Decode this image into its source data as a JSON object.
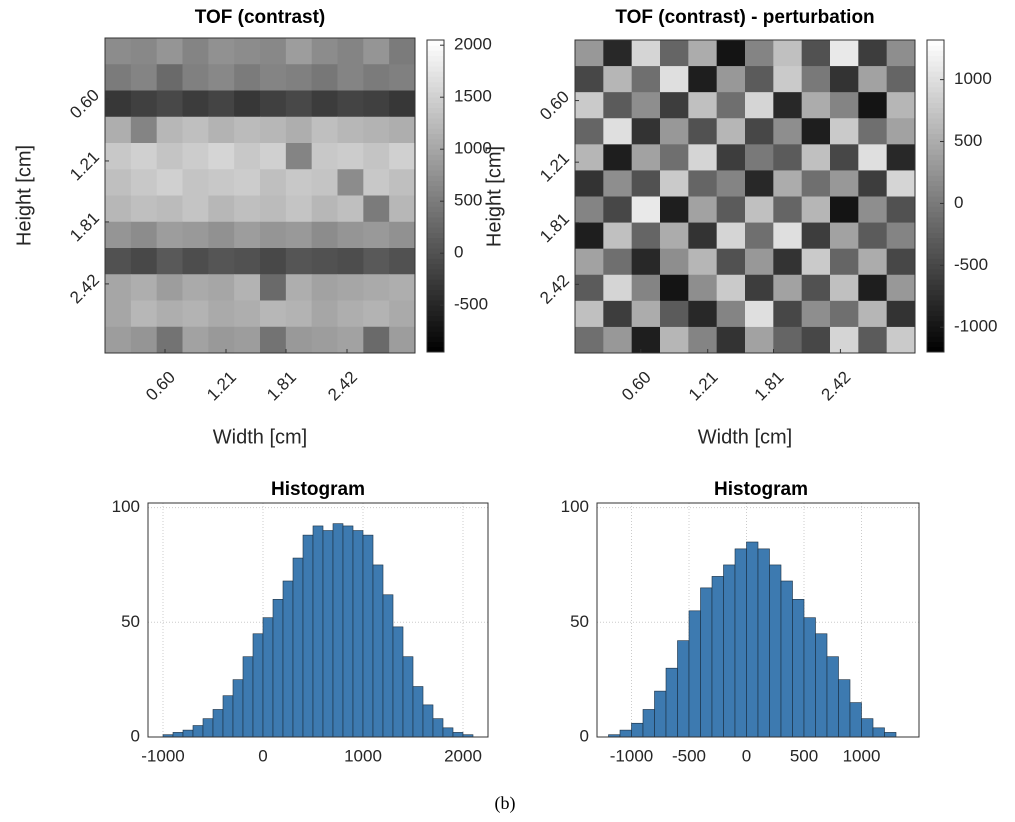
{
  "chart_data": [
    {
      "type": "heatmap",
      "title": "TOF (contrast)",
      "xlabel": "Width [cm]",
      "ylabel": "Height [cm]",
      "xlim": [
        0,
        3.1
      ],
      "ylim": [
        0,
        3.1
      ],
      "ydir": "reverse",
      "xticks": [
        {
          "value": 0.6,
          "label": "0.60"
        },
        {
          "value": 1.21,
          "label": "1.21"
        },
        {
          "value": 1.81,
          "label": "1.81"
        },
        {
          "value": 2.42,
          "label": "2.42"
        }
      ],
      "yticks": [
        {
          "value": 0.6,
          "label": "0.60"
        },
        {
          "value": 1.21,
          "label": "1.21"
        },
        {
          "value": 1.81,
          "label": "1.81"
        },
        {
          "value": 2.42,
          "label": "2.42"
        }
      ],
      "clim": [
        -950,
        2050
      ],
      "cticks": [
        -500,
        0,
        500,
        1000,
        1500,
        2000
      ],
      "colormap": "gray",
      "z": [
        [
          700,
          650,
          800,
          600,
          750,
          700,
          650,
          900,
          700,
          600,
          800,
          500
        ],
        [
          500,
          600,
          300,
          550,
          650,
          500,
          600,
          550,
          450,
          600,
          500,
          550
        ],
        [
          -300,
          -200,
          -100,
          -250,
          -150,
          -300,
          -200,
          -100,
          -250,
          -150,
          -200,
          -300
        ],
        [
          1100,
          600,
          1200,
          1300,
          1150,
          1250,
          1200,
          1100,
          1300,
          1200,
          1150,
          1100
        ],
        [
          1400,
          1500,
          1350,
          1450,
          1550,
          1400,
          1500,
          600,
          1400,
          1450,
          1350,
          1500
        ],
        [
          1300,
          1400,
          1500,
          1350,
          1400,
          1450,
          1300,
          1400,
          1350,
          700,
          1400,
          1300
        ],
        [
          1200,
          1300,
          1250,
          1350,
          1200,
          1300,
          1250,
          1350,
          1200,
          1300,
          500,
          1200
        ],
        [
          800,
          700,
          900,
          850,
          750,
          900,
          800,
          850,
          700,
          800,
          850,
          750
        ],
        [
          0,
          -100,
          100,
          -50,
          50,
          0,
          -100,
          50,
          0,
          -50,
          100,
          0
        ],
        [
          1000,
          1100,
          900,
          1050,
          1000,
          1150,
          300,
          1100,
          950,
          1000,
          1050,
          1100
        ],
        [
          1000,
          1200,
          1100,
          1150,
          1050,
          1100,
          1200,
          1150,
          1000,
          1100,
          1150,
          1050
        ],
        [
          900,
          800,
          400,
          950,
          850,
          900,
          400,
          850,
          900,
          950,
          300,
          900
        ]
      ]
    },
    {
      "type": "heatmap",
      "title": "TOF (contrast) - perturbation",
      "xlabel": "Width [cm]",
      "ylabel": "Height [cm]",
      "xlim": [
        0,
        3.1
      ],
      "ylim": [
        0,
        3.1
      ],
      "ydir": "reverse",
      "xticks": [
        {
          "value": 0.6,
          "label": "0.60"
        },
        {
          "value": 1.21,
          "label": "1.21"
        },
        {
          "value": 1.81,
          "label": "1.81"
        },
        {
          "value": 2.42,
          "label": "2.42"
        }
      ],
      "yticks": [
        {
          "value": 0.6,
          "label": "0.60"
        },
        {
          "value": 1.21,
          "label": "1.21"
        },
        {
          "value": 1.81,
          "label": "1.81"
        },
        {
          "value": 2.42,
          "label": "2.42"
        }
      ],
      "clim": [
        -1200,
        1320
      ],
      "cticks": [
        -1000,
        -500,
        0,
        500,
        1000
      ],
      "colormap": "gray",
      "z": [
        [
          300,
          -800,
          900,
          -200,
          500,
          -1000,
          100,
          700,
          -400,
          1100,
          -600,
          200
        ],
        [
          -500,
          600,
          -100,
          1000,
          -900,
          300,
          -300,
          800,
          0,
          -700,
          400,
          -200
        ],
        [
          800,
          -300,
          200,
          -600,
          700,
          -100,
          900,
          -800,
          500,
          100,
          -1000,
          600
        ],
        [
          -200,
          1000,
          -700,
          300,
          -400,
          600,
          -500,
          200,
          -900,
          800,
          -100,
          400
        ],
        [
          600,
          -900,
          400,
          -100,
          900,
          -600,
          0,
          -300,
          700,
          -500,
          1000,
          -800
        ],
        [
          -700,
          200,
          -400,
          800,
          -200,
          100,
          -800,
          500,
          -100,
          300,
          -600,
          900
        ],
        [
          100,
          -500,
          1100,
          -900,
          400,
          -300,
          700,
          -200,
          600,
          -1000,
          200,
          -400
        ],
        [
          -900,
          700,
          -200,
          500,
          -700,
          900,
          -100,
          1000,
          -600,
          400,
          -300,
          100
        ],
        [
          400,
          -100,
          -800,
          200,
          600,
          -400,
          300,
          -700,
          800,
          -200,
          500,
          -500
        ],
        [
          -300,
          900,
          100,
          -1000,
          200,
          800,
          -600,
          400,
          -400,
          700,
          -900,
          300
        ],
        [
          700,
          -600,
          500,
          -300,
          -800,
          100,
          1000,
          -500,
          200,
          -100,
          600,
          -700
        ],
        [
          -100,
          300,
          -900,
          600,
          100,
          -700,
          400,
          -200,
          -500,
          900,
          -300,
          800
        ]
      ]
    },
    {
      "type": "histogram",
      "title": "Histogram",
      "color": "#3d7ab0",
      "grid": true,
      "xlim": [
        -1150,
        2250
      ],
      "ylim": [
        0,
        102
      ],
      "xticks": [
        -1000,
        0,
        1000,
        2000
      ],
      "yticks": [
        0,
        50,
        100
      ],
      "bins": [
        -1000,
        -900,
        -800,
        -700,
        -600,
        -500,
        -400,
        -300,
        -200,
        -100,
        0,
        100,
        200,
        300,
        400,
        500,
        600,
        700,
        800,
        900,
        1000,
        1100,
        1200,
        1300,
        1400,
        1500,
        1600,
        1700,
        1800,
        1900,
        2000,
        2100
      ],
      "counts": [
        1,
        2,
        3,
        5,
        8,
        12,
        18,
        25,
        35,
        45,
        52,
        60,
        68,
        78,
        88,
        92,
        90,
        93,
        92,
        90,
        88,
        75,
        62,
        48,
        35,
        22,
        14,
        8,
        4,
        2,
        1
      ]
    },
    {
      "type": "histogram",
      "title": "Histogram",
      "color": "#3d7ab0",
      "grid": true,
      "xlim": [
        -1300,
        1500
      ],
      "ylim": [
        0,
        102
      ],
      "xticks": [
        -1000,
        -500,
        0,
        500,
        1000
      ],
      "yticks": [
        0,
        50,
        100
      ],
      "bins": [
        -1200,
        -1100,
        -1000,
        -900,
        -800,
        -700,
        -600,
        -500,
        -400,
        -300,
        -200,
        -100,
        0,
        100,
        200,
        300,
        400,
        500,
        600,
        700,
        800,
        900,
        1000,
        1100,
        1200,
        1300
      ],
      "counts": [
        1,
        3,
        6,
        12,
        20,
        30,
        42,
        55,
        65,
        70,
        75,
        82,
        85,
        82,
        75,
        68,
        60,
        52,
        45,
        35,
        25,
        15,
        8,
        4,
        2
      ]
    }
  ],
  "caption": "(b)"
}
